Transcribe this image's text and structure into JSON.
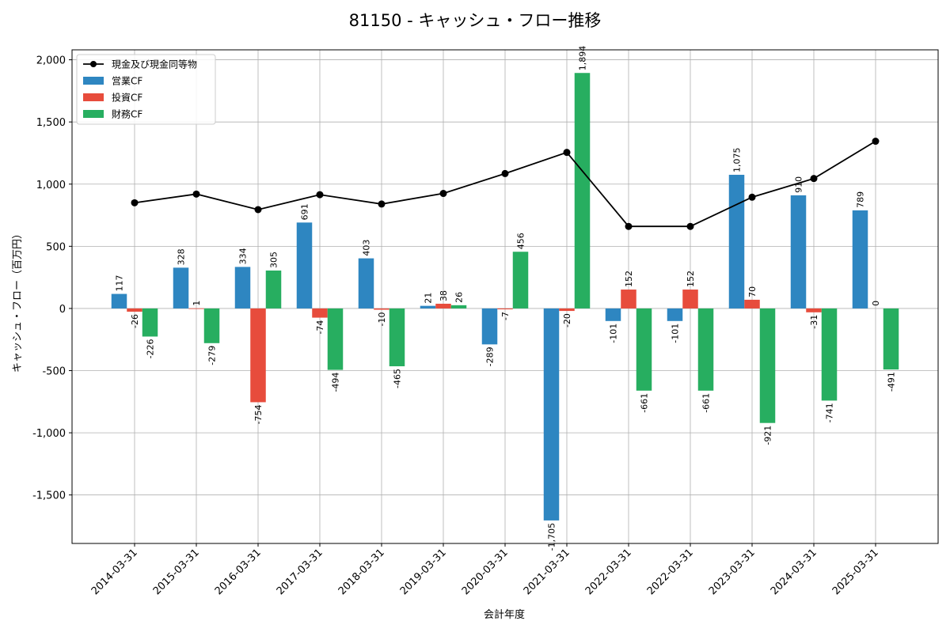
{
  "chart_data": {
    "type": "bar",
    "title": "81150 - キャッシュ・フロー推移",
    "xlabel": "会計年度",
    "ylabel": "キャッシュ・フロー（百万円）",
    "ylim": [
      -1890,
      2080
    ],
    "yticks": [
      -1500,
      -1000,
      -500,
      0,
      500,
      1000,
      1500,
      2000
    ],
    "ytick_labels": [
      "-1,500",
      "-1,000",
      "-500",
      "0",
      "500",
      "1,000",
      "1,500",
      "2,000"
    ],
    "grid": true,
    "legend_position": "top-left",
    "categories": [
      "2014-03-31",
      "2015-03-31",
      "2016-03-31",
      "2017-03-31",
      "2018-03-31",
      "2019-03-31",
      "2020-03-31",
      "2021-03-31",
      "2022-03-31",
      "2022-03-31",
      "2023-03-31",
      "2024-03-31",
      "2025-03-31"
    ],
    "series": [
      {
        "name": "営業CF",
        "type": "bar",
        "color": "#2e86c1",
        "values": [
          117,
          328,
          334,
          691,
          403,
          21,
          -289,
          -1705,
          -101,
          -101,
          1075,
          910,
          789
        ],
        "labels": [
          "117",
          "328",
          "334",
          "691",
          "403",
          "21",
          "-289",
          "-1,705",
          "-101",
          "-101",
          "1,075",
          "910",
          "789"
        ]
      },
      {
        "name": "投資CF",
        "type": "bar",
        "color": "#e74c3c",
        "values": [
          -26,
          1,
          -754,
          -74,
          -10,
          38,
          -7,
          -20,
          152,
          152,
          70,
          -31,
          0
        ],
        "labels": [
          "-26",
          "1",
          "-754",
          "-74",
          "-10",
          "38",
          "-7",
          "-20",
          "152",
          "152",
          "70",
          "-31",
          "0"
        ]
      },
      {
        "name": "財務CF",
        "type": "bar",
        "color": "#27ae60",
        "values": [
          -226,
          -279,
          305,
          -494,
          -465,
          26,
          456,
          1894,
          -661,
          -661,
          -921,
          -741,
          -491
        ],
        "labels": [
          "-226",
          "-279",
          "305",
          "-494",
          "-465",
          "26",
          "456",
          "1,894",
          "-661",
          "-661",
          "-921",
          "-741",
          "-491"
        ]
      },
      {
        "name": "現金及び現金同等物",
        "type": "line",
        "color": "#000000",
        "values": [
          850,
          920,
          795,
          915,
          840,
          925,
          1085,
          1255,
          660,
          660,
          895,
          1045,
          1345
        ]
      }
    ]
  }
}
